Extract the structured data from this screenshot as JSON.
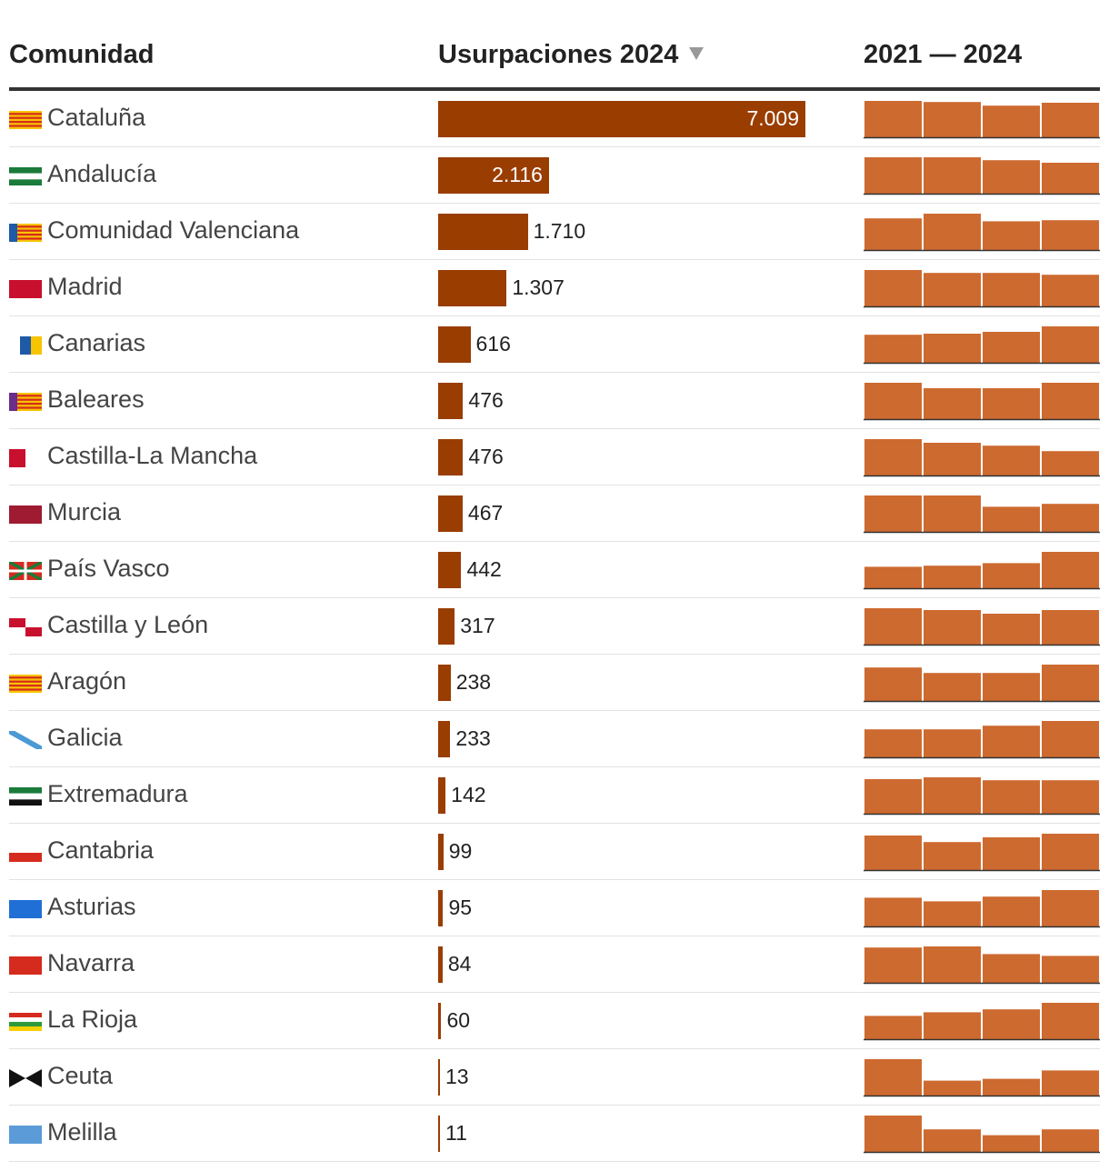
{
  "header": {
    "name": "Comunidad",
    "value": "Usurpaciones 2024",
    "trend": "2021 — 2024"
  },
  "colors": {
    "bar": "#9a3d00",
    "spark": "#cd6a30",
    "spark_base": "#333333"
  },
  "chart_data": {
    "type": "bar",
    "title": "",
    "xlabel": "",
    "ylabel": "",
    "value_max": 7009,
    "trend_years": [
      2021,
      2022,
      2023,
      2024
    ],
    "rows": [
      {
        "name": "Cataluña",
        "value": 7009,
        "label": "7.009",
        "flag": "catalonia-flag",
        "trend": [
          1.0,
          0.97,
          0.87,
          0.95
        ]
      },
      {
        "name": "Andalucía",
        "value": 2116,
        "label": "2.116",
        "flag": "andalusia-flag",
        "trend": [
          1.0,
          1.0,
          0.92,
          0.85
        ]
      },
      {
        "name": "Comunidad Valenciana",
        "value": 1710,
        "label": "1.710",
        "flag": "valencia-flag",
        "trend": [
          0.87,
          1.0,
          0.79,
          0.82
        ]
      },
      {
        "name": "Madrid",
        "value": 1307,
        "label": "1.307",
        "flag": "madrid-flag",
        "trend": [
          1.0,
          0.92,
          0.92,
          0.87
        ]
      },
      {
        "name": "Canarias",
        "value": 616,
        "label": "616",
        "flag": "canarias-flag",
        "trend": [
          0.77,
          0.8,
          0.85,
          1.0
        ]
      },
      {
        "name": "Baleares",
        "value": 476,
        "label": "476",
        "flag": "baleares-flag",
        "trend": [
          1.0,
          0.85,
          0.85,
          1.0
        ]
      },
      {
        "name": "Castilla-La Mancha",
        "value": 476,
        "label": "476",
        "flag": "castilla-la-mancha-flag",
        "trend": [
          1.0,
          0.9,
          0.82,
          0.67
        ]
      },
      {
        "name": "Murcia",
        "value": 467,
        "label": "467",
        "flag": "murcia-flag",
        "trend": [
          1.0,
          1.0,
          0.69,
          0.77
        ]
      },
      {
        "name": "País Vasco",
        "value": 442,
        "label": "442",
        "flag": "pais-vasco-flag",
        "trend": [
          0.59,
          0.62,
          0.69,
          1.0
        ]
      },
      {
        "name": "Castilla y León",
        "value": 317,
        "label": "317",
        "flag": "castilla-y-leon-flag",
        "trend": [
          1.0,
          0.95,
          0.85,
          0.95
        ]
      },
      {
        "name": "Aragón",
        "value": 238,
        "label": "238",
        "flag": "aragon-flag",
        "trend": [
          0.92,
          0.77,
          0.77,
          1.0
        ]
      },
      {
        "name": "Galicia",
        "value": 233,
        "label": "233",
        "flag": "galicia-flag",
        "trend": [
          0.77,
          0.77,
          0.87,
          1.0
        ]
      },
      {
        "name": "Extremadura",
        "value": 142,
        "label": "142",
        "flag": "extremadura-flag",
        "trend": [
          0.95,
          1.0,
          0.92,
          0.92
        ]
      },
      {
        "name": "Cantabria",
        "value": 99,
        "label": "99",
        "flag": "cantabria-flag",
        "trend": [
          0.95,
          0.77,
          0.9,
          1.0
        ]
      },
      {
        "name": "Asturias",
        "value": 95,
        "label": "95",
        "flag": "asturias-flag",
        "trend": [
          0.79,
          0.69,
          0.82,
          1.0
        ]
      },
      {
        "name": "Navarra",
        "value": 84,
        "label": "84",
        "flag": "navarra-flag",
        "trend": [
          0.97,
          1.0,
          0.79,
          0.74
        ]
      },
      {
        "name": "La Rioja",
        "value": 60,
        "label": "60",
        "flag": "la-rioja-flag",
        "trend": [
          0.64,
          0.74,
          0.82,
          1.0
        ]
      },
      {
        "name": "Ceuta",
        "value": 13,
        "label": "13",
        "flag": "ceuta-flag",
        "trend": [
          1.0,
          0.41,
          0.46,
          0.69
        ]
      },
      {
        "name": "Melilla",
        "value": 11,
        "label": "11",
        "flag": "melilla-flag",
        "trend": [
          1.0,
          0.62,
          0.46,
          0.62
        ]
      }
    ]
  }
}
